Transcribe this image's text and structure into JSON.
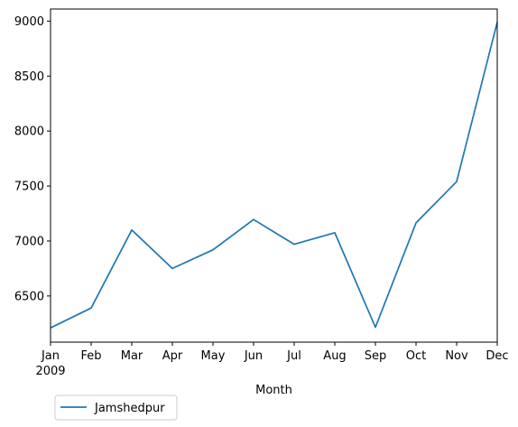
{
  "chart_data": {
    "type": "line",
    "title": "",
    "xlabel": "Month",
    "ylabel": "",
    "categories": [
      "Jan",
      "Feb",
      "Mar",
      "Apr",
      "May",
      "Jun",
      "Jul",
      "Aug",
      "Sep",
      "Oct",
      "Nov",
      "Dec"
    ],
    "year_label": "2009",
    "ylim": [
      6080,
      9110
    ],
    "yticks": [
      6500,
      7000,
      7500,
      8000,
      8500,
      9000
    ],
    "ytick_labels": [
      "6500",
      "7000",
      "7500",
      "8000",
      "8500",
      "9000"
    ],
    "grid": false,
    "legend_position": "bottom-left, outside plot",
    "series": [
      {
        "name": "Jamshedpur",
        "color": "#1f77b4",
        "values": [
          6210,
          6390,
          7100,
          6750,
          6920,
          7195,
          6970,
          7075,
          6215,
          7165,
          7540,
          8990
        ]
      }
    ]
  }
}
